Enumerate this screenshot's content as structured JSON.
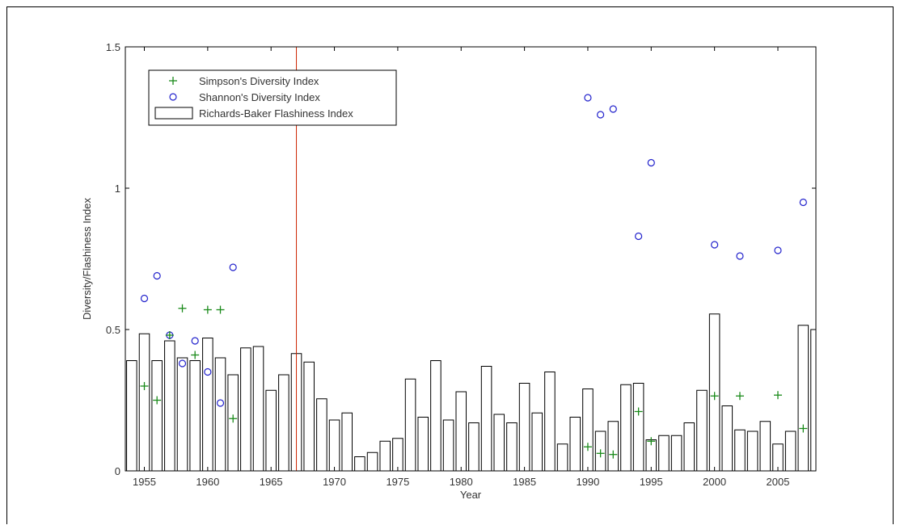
{
  "chart_data": {
    "type": "bar",
    "xlabel": "Year",
    "ylabel": "Diversity/Flashiness Index",
    "xlim": [
      1953.5,
      2008.0
    ],
    "ylim": [
      0,
      1.5
    ],
    "x_ticks": [
      "1955",
      "1960",
      "1965",
      "1970",
      "1975",
      "1980",
      "1985",
      "1990",
      "1995",
      "2000",
      "2005"
    ],
    "y_ticks": [
      "0",
      "0.5",
      "1",
      "1.5"
    ],
    "legend_position": "top-left",
    "colors": {
      "simpson": "#1a8a1a",
      "shannon": "#2222cc",
      "bar": "#000000",
      "vline": "#cc2200"
    },
    "vertical_line_x": 1967,
    "series": [
      {
        "name": "Simpson's Diversity Index",
        "kind": "scatter-plus",
        "points": [
          [
            1955,
            0.3
          ],
          [
            1956,
            0.25
          ],
          [
            1957,
            0.48
          ],
          [
            1958,
            0.575
          ],
          [
            1959,
            0.41
          ],
          [
            1960,
            0.57
          ],
          [
            1961,
            0.57
          ],
          [
            1962,
            0.185
          ],
          [
            1990,
            0.085
          ],
          [
            1991,
            0.062
          ],
          [
            1992,
            0.058
          ],
          [
            1994,
            0.21
          ],
          [
            1995,
            0.105
          ],
          [
            2000,
            0.265
          ],
          [
            2002,
            0.265
          ],
          [
            2005,
            0.268
          ],
          [
            2007,
            0.15
          ]
        ]
      },
      {
        "name": "Shannon's Diversity Index",
        "kind": "scatter-circle",
        "points": [
          [
            1955,
            0.61
          ],
          [
            1956,
            0.69
          ],
          [
            1957,
            0.48
          ],
          [
            1958,
            0.38
          ],
          [
            1959,
            0.46
          ],
          [
            1960,
            0.35
          ],
          [
            1961,
            0.24
          ],
          [
            1962,
            0.72
          ],
          [
            1990,
            1.32
          ],
          [
            1991,
            1.26
          ],
          [
            1992,
            1.28
          ],
          [
            1994,
            0.83
          ],
          [
            1995,
            1.09
          ],
          [
            2000,
            0.8
          ],
          [
            2002,
            0.76
          ],
          [
            2005,
            0.78
          ],
          [
            2007,
            0.95
          ]
        ]
      },
      {
        "name": "Richards-Baker Flashiness Index",
        "kind": "bar",
        "years": [
          1954,
          1955,
          1956,
          1957,
          1958,
          1959,
          1960,
          1961,
          1962,
          1963,
          1964,
          1965,
          1966,
          1967,
          1968,
          1969,
          1970,
          1971,
          1972,
          1973,
          1974,
          1975,
          1976,
          1977,
          1978,
          1979,
          1980,
          1981,
          1982,
          1983,
          1984,
          1985,
          1986,
          1987,
          1988,
          1989,
          1990,
          1991,
          1992,
          1993,
          1994,
          1995,
          1996,
          1997,
          1998,
          1999,
          2000,
          2001,
          2002,
          2003,
          2004,
          2005,
          2006,
          2007,
          2008
        ],
        "values": [
          0.39,
          0.485,
          0.39,
          0.46,
          0.4,
          0.39,
          0.47,
          0.4,
          0.34,
          0.435,
          0.44,
          0.285,
          0.34,
          0.415,
          0.385,
          0.255,
          0.18,
          0.205,
          0.05,
          0.065,
          0.105,
          0.115,
          0.325,
          0.19,
          0.39,
          0.18,
          0.28,
          0.17,
          0.37,
          0.2,
          0.17,
          0.31,
          0.205,
          0.35,
          0.095,
          0.19,
          0.29,
          0.14,
          0.175,
          0.305,
          0.31,
          0.11,
          0.125,
          0.125,
          0.17,
          0.285,
          0.555,
          0.23,
          0.145,
          0.14,
          0.175,
          0.095,
          0.14,
          0.515,
          0.5
        ]
      }
    ]
  }
}
